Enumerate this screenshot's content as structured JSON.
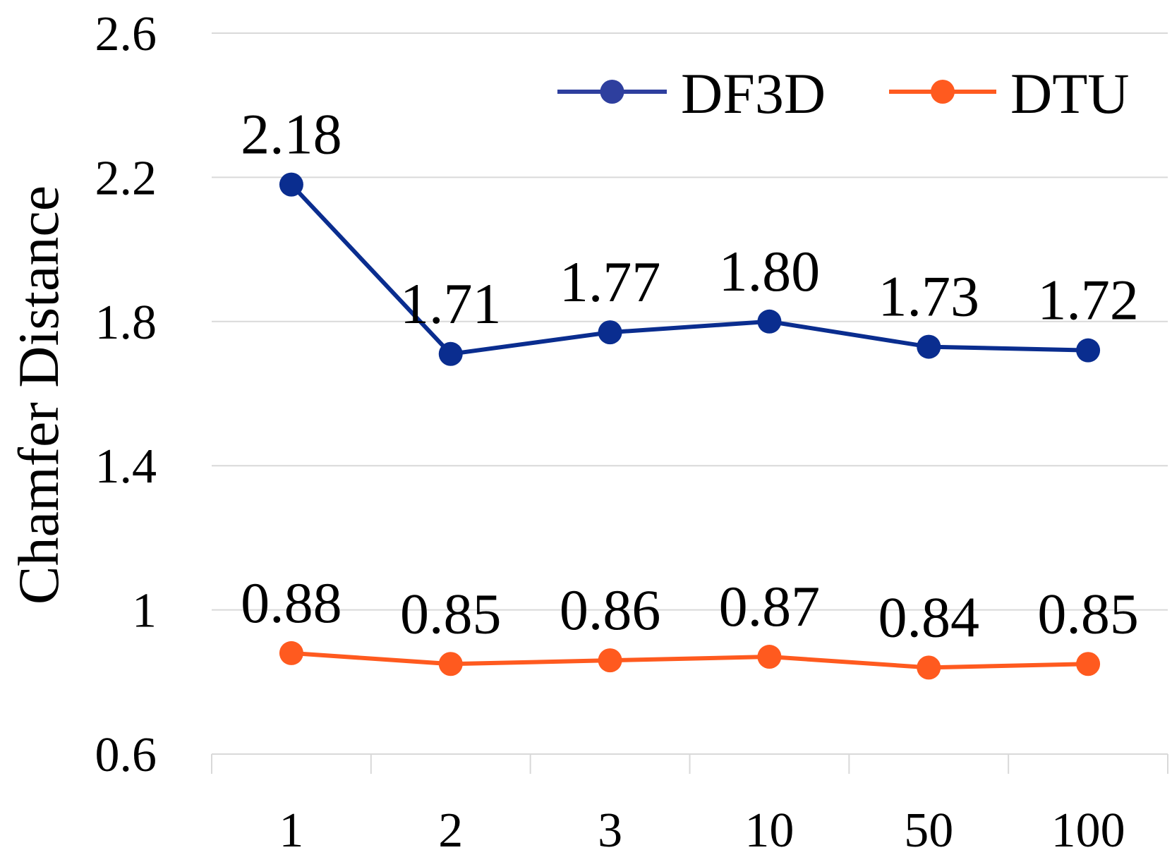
{
  "chart_data": {
    "type": "line",
    "title": "",
    "xlabel": "",
    "ylabel": "Chamfer Distance",
    "categories": [
      "1",
      "2",
      "3",
      "10",
      "50",
      "100"
    ],
    "y_ticks": [
      "0.6",
      "1",
      "1.4",
      "1.8",
      "2.2",
      "2.6"
    ],
    "ylim": [
      0.6,
      2.6
    ],
    "grid": true,
    "legend_position": "top-right",
    "series": [
      {
        "name": "DF3D",
        "color": "#0a2d8f",
        "legend_color": "#2e3f9e",
        "values": [
          2.18,
          1.71,
          1.77,
          1.8,
          1.73,
          1.72
        ],
        "labels": [
          "2.18",
          "1.71",
          "1.77",
          "1.80",
          "1.73",
          "1.72"
        ]
      },
      {
        "name": "DTU",
        "color": "#ff5a1f",
        "legend_color": "#ff5a1f",
        "values": [
          0.88,
          0.85,
          0.86,
          0.87,
          0.84,
          0.85
        ],
        "labels": [
          "0.88",
          "0.85",
          "0.86",
          "0.87",
          "0.84",
          "0.85"
        ]
      }
    ]
  }
}
